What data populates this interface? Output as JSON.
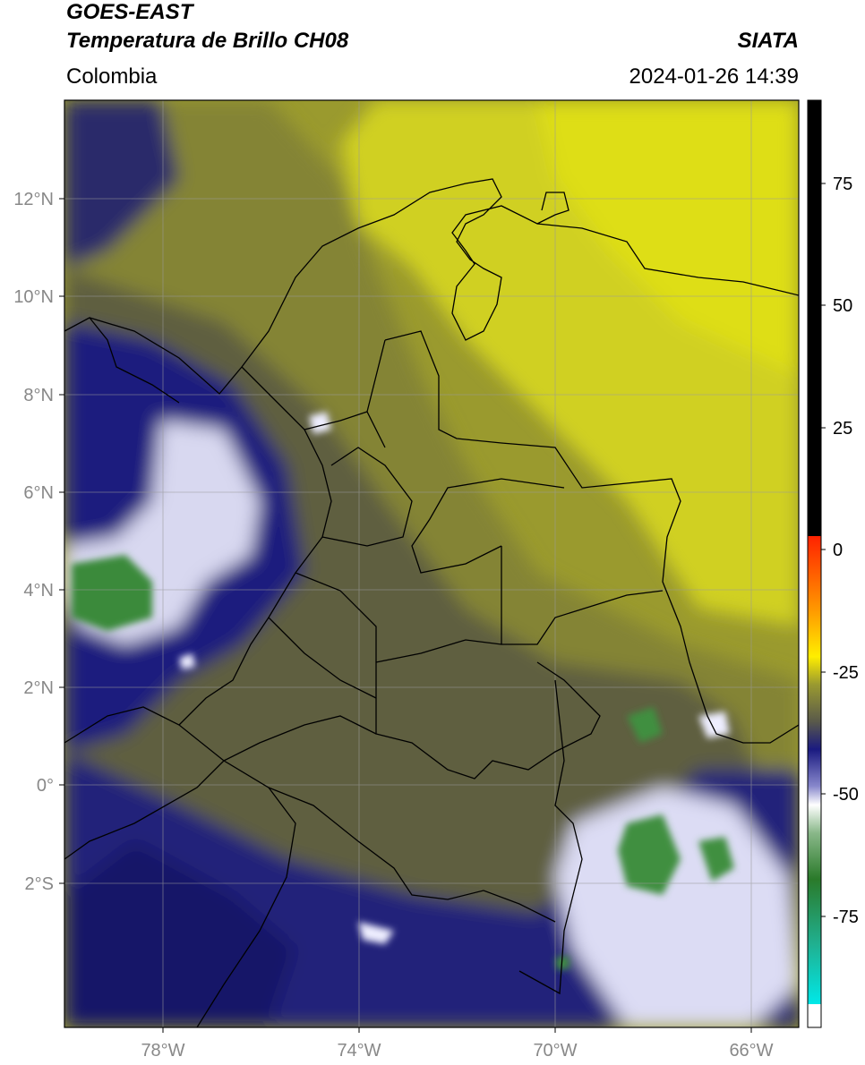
{
  "header": {
    "satellite": "GOES-EAST",
    "product": "Temperatura de Brillo CH08",
    "brand": "SIATA",
    "region": "Colombia",
    "timestamp": "2024-01-26 14:39"
  },
  "map": {
    "lat_labels": [
      "12°N",
      "10°N",
      "8°N",
      "6°N",
      "4°N",
      "2°N",
      "0°",
      "2°S"
    ],
    "lon_labels": [
      "78°W",
      "74°W",
      "70°W",
      "66°W"
    ],
    "extent": {
      "lon_min": -80,
      "lon_max": -65,
      "lat_min": -5,
      "lat_max": 14
    },
    "colors": {
      "yellow": "#d8d818",
      "olive": "#8c8c2c",
      "darkolive": "#5a5a3c",
      "navy": "#161680",
      "white": "#eeeeff",
      "green": "#3a8a3a"
    }
  },
  "colorbar": {
    "ticks": [
      "75",
      "50",
      "25",
      "0",
      "-25",
      "-50",
      "-75"
    ],
    "tick_values": [
      75,
      50,
      25,
      0,
      -25,
      -50,
      -75
    ],
    "range": [
      -100,
      90
    ]
  }
}
